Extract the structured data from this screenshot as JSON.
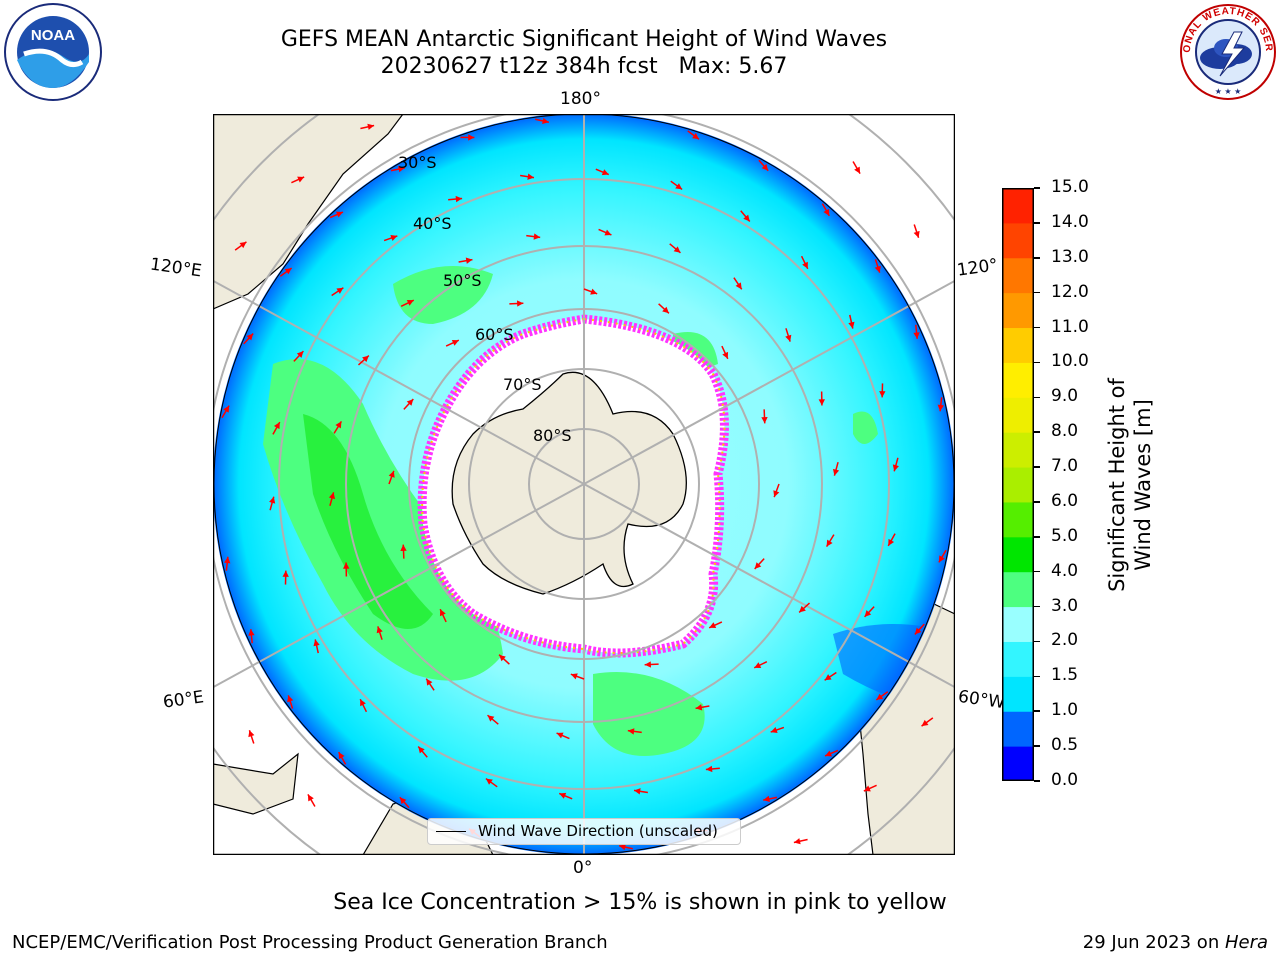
{
  "title": {
    "line1": "GEFS MEAN Antarctic Significant Height of Wind Waves",
    "line2": "20230627 t12z 384h fcst   Max: 5.67"
  },
  "map": {
    "projection": "south-polar-stereographic",
    "longitude_labels": [
      "180°",
      "120°E",
      "120°",
      "60°E",
      "60°W",
      "0°"
    ],
    "latitude_labels": [
      "30°S",
      "40°S",
      "50°S",
      "60°S",
      "70°S",
      "80°S"
    ],
    "legend_entry": "Wind Wave Direction (unscaled)",
    "arrow_color": "#ff0000",
    "land_color": "#efebdc",
    "sea_ice_note_colors": [
      "#ff33ff",
      "#ffaa00",
      "#ffff00"
    ]
  },
  "colorbar": {
    "label": "Significant Height of Wind Waves [m]",
    "ticks": [
      "0.0",
      "0.5",
      "1.0",
      "1.5",
      "2.0",
      "3.0",
      "4.0",
      "5.0",
      "6.0",
      "7.0",
      "8.0",
      "9.0",
      "10.0",
      "11.0",
      "12.0",
      "13.0",
      "14.0",
      "15.0"
    ],
    "colors": [
      "#0000ff",
      "#0066ff",
      "#00e5ff",
      "#33f5ff",
      "#99ffff",
      "#4dff80",
      "#00e600",
      "#55ee00",
      "#aaee00",
      "#ccee00",
      "#eeee00",
      "#ffee00",
      "#ffcc00",
      "#ff9900",
      "#ff7700",
      "#ff4400",
      "#ff2200"
    ]
  },
  "logos": {
    "left": "NOAA",
    "right_text": "NATIONAL WEATHER SERVICE"
  },
  "footer": {
    "note": "Sea Ice Concentration > 15% is shown in pink to yellow",
    "left": "NCEP/EMC/Verification Post Processing Product Generation Branch",
    "right_date": "29 Jun 2023 on ",
    "right_machine": "Hera"
  }
}
